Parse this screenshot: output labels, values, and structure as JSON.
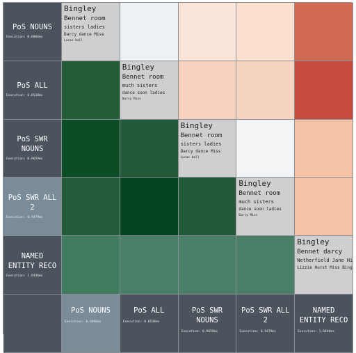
{
  "headers": [
    {
      "title": "PoS NOUNS",
      "exec": "Execution: 0.6066ms"
    },
    {
      "title": "PoS ALL",
      "exec": "Execution: 0.6530ms"
    },
    {
      "title": "PoS SWR NOUNS",
      "exec": "Execution: 0.9659ms"
    },
    {
      "title": "PoS SWR ALL 2",
      "exec": "Execution: 0.9479ms"
    },
    {
      "title": "NAMED ENTITY RECO",
      "exec": "Execution: 1.6446ms"
    }
  ],
  "selected_header": 3,
  "wordclouds": [
    {
      "l1": "Bingley",
      "l2": "Bennet room",
      "l3": "sisters ladies",
      "l4": "Darcy dance Miss",
      "l5": "Lucas ball"
    },
    {
      "l1": "Bingley",
      "l2": "Bennet room",
      "l3": "much sisters",
      "l4": "dance soon ladies",
      "l5": "Darcy Miss"
    },
    {
      "l1": "Bingley",
      "l2": "Bennet room",
      "l3": "sisters ladies",
      "l4": "Darcy dance Miss",
      "l5": "Lucas ball"
    },
    {
      "l1": "Bingley",
      "l2": "Bennet room",
      "l3": "much sisters",
      "l4": "dance soon ladies",
      "l5": "Darcy Miss"
    },
    {
      "l1": "Bingley",
      "l2": "Bennet darcy",
      "l3": "Netherfield Jane Hingleyees",
      "l4": "Lizzie Hurst Miss Bingley Lizzy",
      "l5": ""
    }
  ],
  "matrix_colors": [
    [
      "diag",
      "#eef1f4",
      "#fbe5d9",
      "#fbe0d0",
      "#d16a52"
    ],
    [
      "#245c3a",
      "diag",
      "#f7d3bf",
      "#f7d4c0",
      "#c64c3f"
    ],
    [
      "#0a4d24",
      "#225a39",
      "diag",
      "#f3f4f5",
      "#f6c3a6"
    ],
    [
      "#235a39",
      "#044420",
      "#225938",
      "diag",
      "#f6c3a6"
    ],
    [
      "#3e7b5f",
      "#4a8068",
      "#4b7e67",
      "#4a7e66",
      "diag"
    ]
  ]
}
